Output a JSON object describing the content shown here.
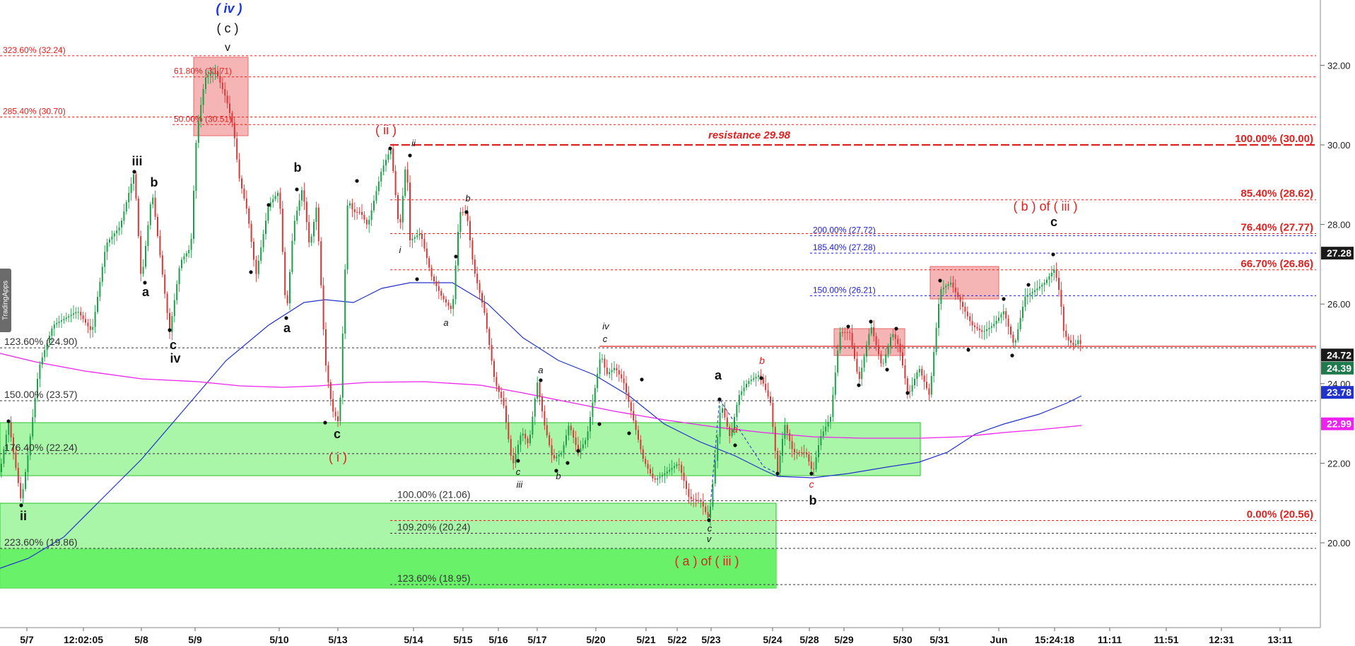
{
  "watermark": "TradingApps",
  "chart_data": {
    "type": "candlestick",
    "ylim": [
      18,
      33.7
    ],
    "yticks": [
      "20.00",
      "22.00",
      "24.00",
      "26.00",
      "28.00",
      "30.00",
      "32.00"
    ],
    "xticks": [
      "5/7",
      "12:02:05",
      "5/8",
      "5/9",
      "5/10",
      "5/13",
      "5/14",
      "5/15",
      "5/16",
      "5/17",
      "5/20",
      "5/21",
      "5/22",
      "5/23",
      "5/24",
      "5/28",
      "5/29",
      "5/30",
      "5/31",
      "Jun",
      "15:24:18",
      "11:11",
      "11:51",
      "12:31",
      "13:11"
    ],
    "price_badges": [
      {
        "value": "27.28",
        "bg": "#1a1a1a",
        "fg": "#ffffff",
        "y": 27.28
      },
      {
        "value": "24.72",
        "bg": "#1a1a1a",
        "fg": "#ffffff",
        "y": 24.72
      },
      {
        "value": "24.39",
        "bg": "#1f7a4d",
        "fg": "#ffffff",
        "y": 24.39
      },
      {
        "value": "23.78",
        "bg": "#2233cc",
        "fg": "#ffffff",
        "y": 23.78
      },
      {
        "value": "22.99",
        "bg": "#ee22ee",
        "fg": "#ffffff",
        "y": 22.99
      }
    ],
    "fib_levels": [
      {
        "label": "323.60% (32.24)",
        "y": 32.24,
        "color": "#dd2222",
        "style": "dash"
      },
      {
        "label": "285.40% (30.70)",
        "y": 30.7,
        "color": "#dd2222",
        "style": "dash"
      },
      {
        "label": "123.60% (24.90)",
        "y": 24.9,
        "color": "#333333",
        "style": "dash"
      },
      {
        "label": "150.00% (23.57)",
        "y": 23.57,
        "color": "#333333",
        "style": "dash"
      },
      {
        "label": "176.40% (22.24)",
        "y": 22.24,
        "color": "#333333",
        "style": "dash"
      },
      {
        "label": "223.60% (19.86)",
        "y": 19.86,
        "color": "#333333",
        "style": "dash"
      },
      {
        "label": "61.80% (31.71)",
        "y": 31.71,
        "color": "#dd2222",
        "style": "dash"
      },
      {
        "label": "50.00% (30.51)",
        "y": 30.51,
        "color": "#dd2222",
        "style": "dash"
      },
      {
        "label": "100.00% (21.06)",
        "y": 21.06,
        "color": "#333333",
        "style": "dash"
      },
      {
        "label": "109.20% (20.24)",
        "y": 20.24,
        "color": "#333333",
        "style": "dash"
      },
      {
        "label": "123.60% (18.95)",
        "y": 18.95,
        "color": "#333333",
        "style": "dash"
      },
      {
        "label": "200.00% (27.72)",
        "y": 27.72,
        "color": "#2222cc",
        "style": "dash"
      },
      {
        "label": "185.40% (27.28)",
        "y": 27.28,
        "color": "#2222cc",
        "style": "dash"
      },
      {
        "label": "150.00% (26.21)",
        "y": 26.21,
        "color": "#2222cc",
        "style": "dash"
      },
      {
        "label": "100.00% (30.00)",
        "y": 30.0,
        "color": "#dd2222",
        "style": "bold"
      },
      {
        "label": "85.40% (28.62)",
        "y": 28.62,
        "color": "#dd2222",
        "style": "bold"
      },
      {
        "label": "76.40% (27.77)",
        "y": 27.77,
        "color": "#dd2222",
        "style": "bold"
      },
      {
        "label": "66.70% (26.86)",
        "y": 26.86,
        "color": "#dd2222",
        "style": "bold"
      },
      {
        "label": "0.00% (20.56)",
        "y": 20.56,
        "color": "#dd2222",
        "style": "bold"
      }
    ],
    "resistance_label": "resistance 29.98",
    "wave_labels": [
      {
        "t": "( iv )",
        "c": "#1a33dd",
        "s": 18,
        "i": true,
        "b": true
      },
      {
        "t": "( c )",
        "c": "#111",
        "s": 18,
        "i": false,
        "b": false
      },
      {
        "t": "v",
        "c": "#111",
        "s": 16,
        "i": false,
        "b": false
      },
      {
        "t": "iii",
        "c": "#111",
        "s": 18,
        "i": false,
        "b": true
      },
      {
        "t": "b",
        "c": "#111",
        "s": 18,
        "i": false,
        "b": true
      },
      {
        "t": "a",
        "c": "#111",
        "s": 18,
        "i": false,
        "b": true
      },
      {
        "t": "c",
        "c": "#111",
        "s": 18,
        "i": false,
        "b": true
      },
      {
        "t": "iv",
        "c": "#111",
        "s": 18,
        "i": false,
        "b": true
      },
      {
        "t": "ii",
        "c": "#111",
        "s": 18,
        "i": false,
        "b": true
      },
      {
        "t": "b",
        "c": "#111",
        "s": 18,
        "i": false,
        "b": true
      },
      {
        "t": "a",
        "c": "#111",
        "s": 18,
        "i": false,
        "b": true
      },
      {
        "t": "c",
        "c": "#111",
        "s": 18,
        "i": false,
        "b": true
      },
      {
        "t": "( i )",
        "c": "#dd2222",
        "s": 18,
        "i": false,
        "b": false
      },
      {
        "t": "( ii )",
        "c": "#dd2222",
        "s": 18,
        "i": false,
        "b": false
      },
      {
        "t": "ii",
        "c": "#111",
        "s": 13,
        "i": true,
        "b": false
      },
      {
        "t": "i",
        "c": "#111",
        "s": 13,
        "i": true,
        "b": false
      },
      {
        "t": "b",
        "c": "#111",
        "s": 13,
        "i": true,
        "b": false
      },
      {
        "t": "a",
        "c": "#111",
        "s": 13,
        "i": true,
        "b": false
      },
      {
        "t": "a",
        "c": "#111",
        "s": 13,
        "i": true,
        "b": false
      },
      {
        "t": "c",
        "c": "#111",
        "s": 13,
        "i": true,
        "b": false
      },
      {
        "t": "iii",
        "c": "#111",
        "s": 13,
        "i": true,
        "b": false
      },
      {
        "t": "b",
        "c": "#111",
        "s": 13,
        "i": true,
        "b": false
      },
      {
        "t": "iv",
        "c": "#111",
        "s": 13,
        "i": true,
        "b": false
      },
      {
        "t": "c",
        "c": "#111",
        "s": 13,
        "i": true,
        "b": false
      },
      {
        "t": "c",
        "c": "#111",
        "s": 13,
        "i": true,
        "b": false
      },
      {
        "t": "v",
        "c": "#111",
        "s": 13,
        "i": true,
        "b": false
      },
      {
        "t": "( a ) of ( iii )",
        "c": "#dd2222",
        "s": 18,
        "i": false,
        "b": false
      },
      {
        "t": "a",
        "c": "#111",
        "s": 18,
        "i": false,
        "b": true
      },
      {
        "t": "a",
        "c": "#dd2222",
        "s": 14,
        "i": true,
        "b": false
      },
      {
        "t": "b",
        "c": "#dd2222",
        "s": 14,
        "i": true,
        "b": false
      },
      {
        "t": "c",
        "c": "#dd2222",
        "s": 14,
        "i": true,
        "b": false
      },
      {
        "t": "b",
        "c": "#111",
        "s": 18,
        "i": false,
        "b": true
      },
      {
        "t": "( b ) of ( iii )",
        "c": "#dd2222",
        "s": 18,
        "i": false,
        "b": false
      },
      {
        "t": "c",
        "c": "#111",
        "s": 18,
        "i": false,
        "b": true
      }
    ]
  }
}
